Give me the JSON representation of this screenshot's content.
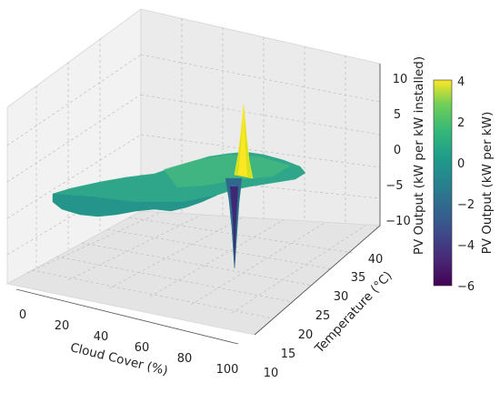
{
  "chart_data": {
    "type": "surface3d",
    "title": "",
    "xlabel": "Cloud Cover (%)",
    "ylabel": "Temperature (°C)",
    "zlabel": "PV Output (kW per kW installed)",
    "x_ticks": [
      "0",
      "20",
      "40",
      "60",
      "80",
      "100"
    ],
    "y_ticks": [
      "10",
      "15",
      "20",
      "25",
      "30",
      "35",
      "40"
    ],
    "z_ticks": [
      "10",
      "5",
      "0",
      "−5",
      "−10"
    ],
    "xlim": [
      -5,
      105
    ],
    "ylim": [
      8,
      42
    ],
    "zlim": [
      -12,
      11
    ],
    "grid": true,
    "colormap": "viridis",
    "colorbar": {
      "label": "PV Output (kW per kW)",
      "ticks": [
        "4",
        "2",
        "0",
        "−2",
        "−4",
        "−6"
      ],
      "range": [
        -6,
        4.2
      ]
    },
    "surface_baseline": -1.0,
    "spikes": [
      {
        "cloud_cover": 60,
        "temperature": 19,
        "pv_output": 4.2
      },
      {
        "cloud_cover": 58,
        "temperature": 17,
        "pv_output": -6.2
      }
    ]
  }
}
